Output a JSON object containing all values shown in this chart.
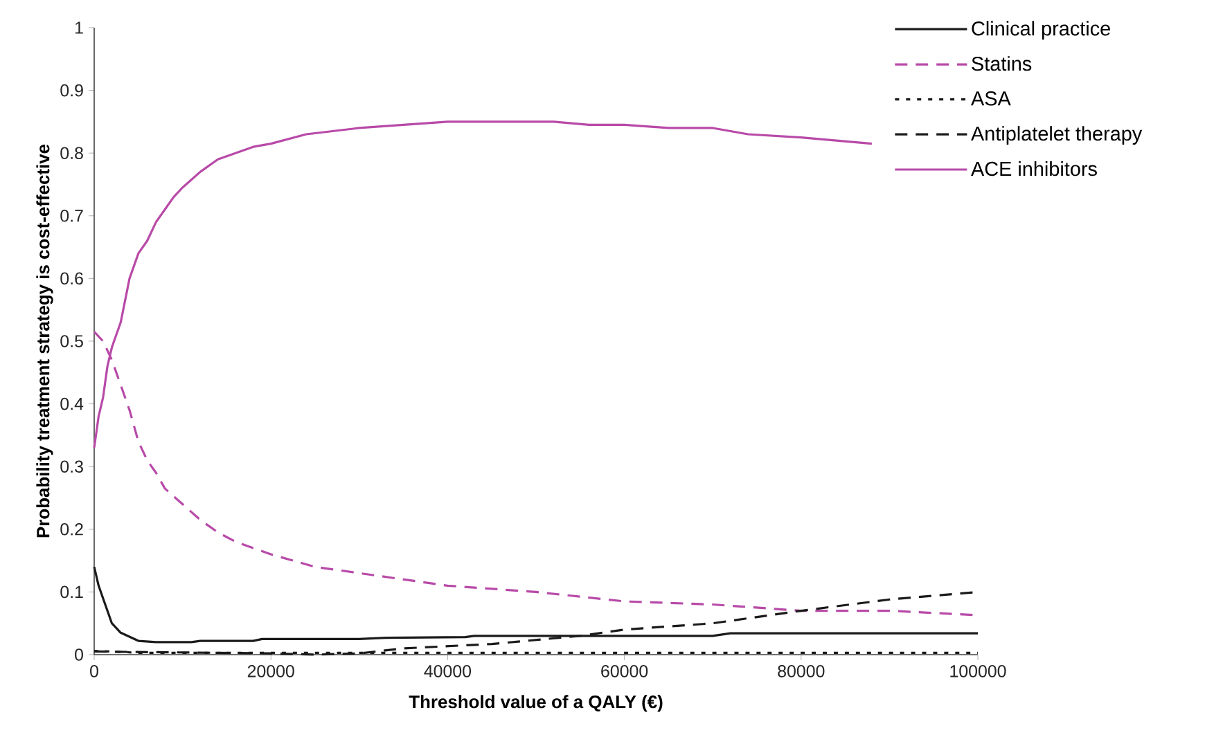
{
  "chart_data": {
    "type": "line",
    "xlabel": "Threshold value of a QALY (€)",
    "ylabel": "Probability treatment strategy is cost-effective",
    "xlim": [
      0,
      100000
    ],
    "ylim": [
      0,
      1
    ],
    "xticks": [
      0,
      20000,
      40000,
      60000,
      80000,
      100000
    ],
    "yticks": [
      0,
      0.1,
      0.2,
      0.3,
      0.4,
      0.5,
      0.6,
      0.7,
      0.8,
      0.9,
      1
    ],
    "grid": false,
    "legend": "top right",
    "marker": "none",
    "series": [
      {
        "name": "Clinical practice",
        "color": "#1a1a1a",
        "line_style": "solid",
        "x": [
          0,
          500,
          1000,
          2000,
          3000,
          5000,
          7000,
          11000,
          12000,
          18000,
          19000,
          30000,
          33000,
          42000,
          43000,
          70000,
          72000,
          100000
        ],
        "values": [
          0.14,
          0.11,
          0.09,
          0.05,
          0.035,
          0.022,
          0.02,
          0.02,
          0.022,
          0.022,
          0.025,
          0.025,
          0.027,
          0.028,
          0.03,
          0.03,
          0.034,
          0.034
        ]
      },
      {
        "name": "Statins",
        "color": "#b84aa8",
        "line_style": "dashed",
        "x": [
          0,
          1000,
          2000,
          3000,
          4000,
          5000,
          6000,
          7000,
          8000,
          10000,
          12000,
          14000,
          16000,
          18000,
          20000,
          25000,
          30000,
          40000,
          50000,
          60000,
          70000,
          80000,
          90000,
          100000
        ],
        "values": [
          0.515,
          0.5,
          0.47,
          0.43,
          0.39,
          0.34,
          0.31,
          0.29,
          0.265,
          0.24,
          0.215,
          0.195,
          0.18,
          0.17,
          0.16,
          0.14,
          0.13,
          0.11,
          0.1,
          0.085,
          0.08,
          0.07,
          0.07,
          0.063
        ]
      },
      {
        "name": "ASA",
        "color": "#1a1a1a",
        "line_style": "dotted",
        "x": [
          0,
          2000,
          5000,
          100000
        ],
        "values": [
          0.006,
          0.005,
          0.003,
          0.003
        ]
      },
      {
        "name": "Antiplatelet therapy",
        "color": "#1a1a1a",
        "line_style": "dashed",
        "x": [
          0,
          20000,
          25000,
          30000,
          35000,
          45000,
          55000,
          60000,
          70000,
          80000,
          90000,
          100000
        ],
        "values": [
          0.005,
          0.002,
          0.0,
          0.002,
          0.01,
          0.017,
          0.03,
          0.04,
          0.05,
          0.07,
          0.088,
          0.1
        ]
      },
      {
        "name": "ACE inhibitors",
        "color": "#b84aa8",
        "line_style": "solid",
        "x": [
          0,
          500,
          1000,
          1500,
          2000,
          3000,
          4000,
          5000,
          6000,
          7000,
          8000,
          9000,
          10000,
          12000,
          14000,
          16000,
          18000,
          20000,
          24000,
          30000,
          35000,
          40000,
          52000,
          56000,
          60000,
          65000,
          70000,
          74000,
          80000,
          88000
        ],
        "values": [
          0.33,
          0.38,
          0.41,
          0.46,
          0.49,
          0.53,
          0.6,
          0.64,
          0.66,
          0.69,
          0.71,
          0.73,
          0.745,
          0.77,
          0.79,
          0.8,
          0.81,
          0.815,
          0.83,
          0.84,
          0.845,
          0.85,
          0.85,
          0.845,
          0.845,
          0.84,
          0.84,
          0.83,
          0.825,
          0.815
        ]
      }
    ]
  }
}
